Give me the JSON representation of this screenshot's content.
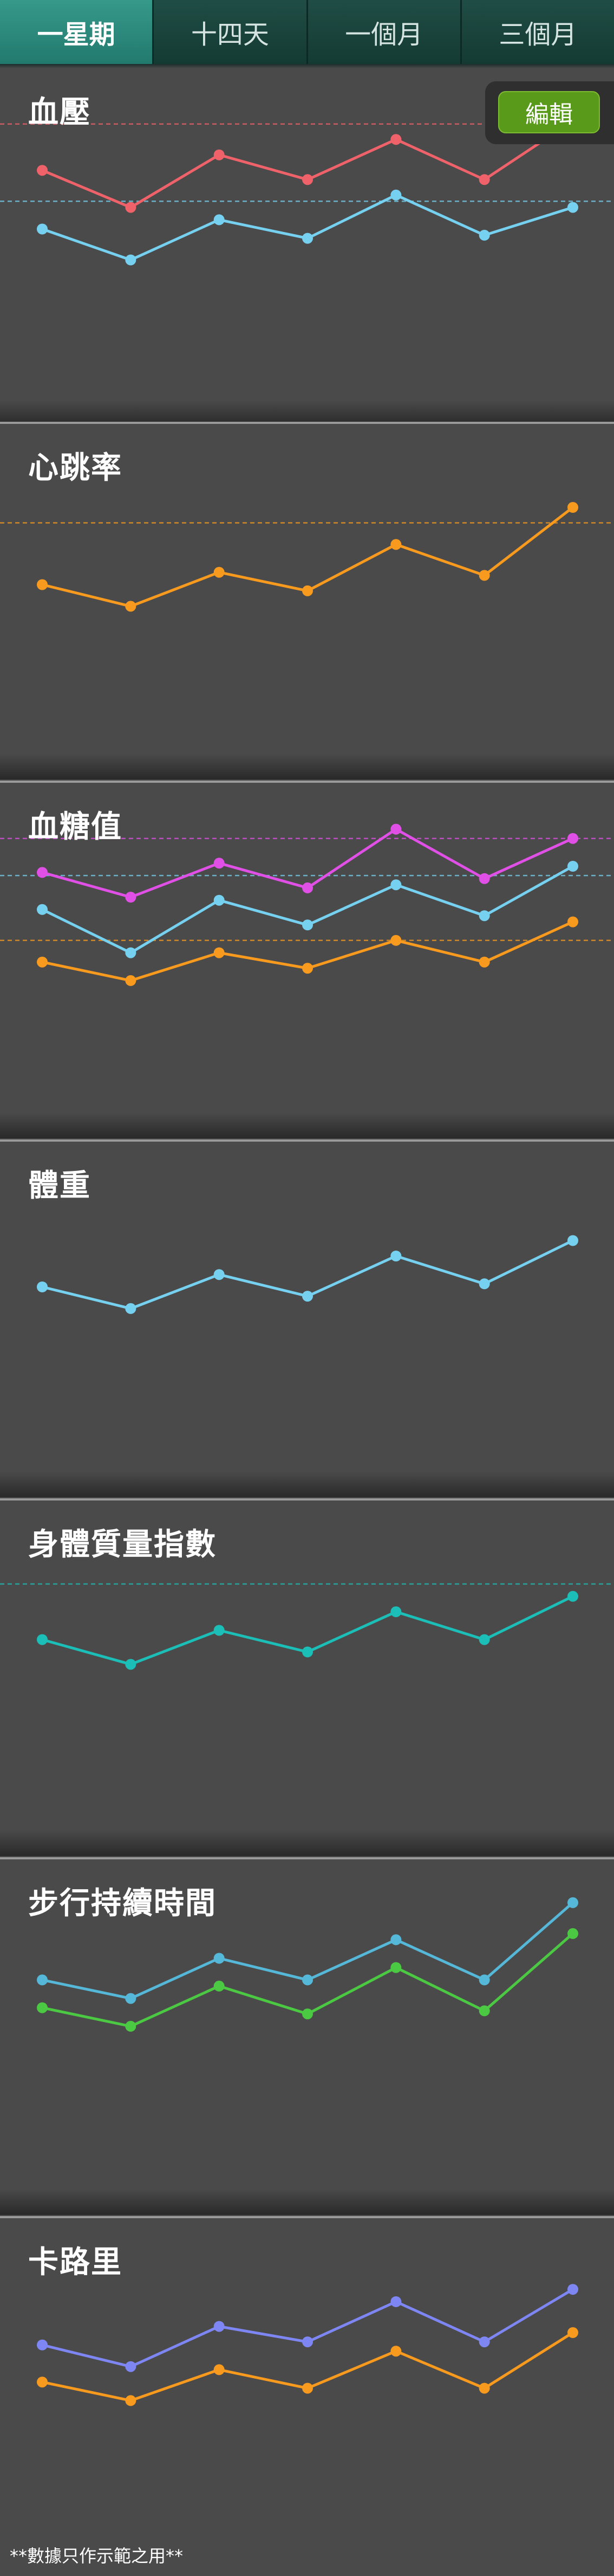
{
  "tabs": [
    {
      "label": "一星期",
      "active": true
    },
    {
      "label": "十四天",
      "active": false
    },
    {
      "label": "一個月",
      "active": false
    },
    {
      "label": "三個月",
      "active": false
    }
  ],
  "edit_button": {
    "label": "編輯"
  },
  "footnote": "**數據只作示範之用**",
  "colors": {
    "red": "#f0626a",
    "blue": "#76d1f0",
    "orange": "#f89a1e",
    "magenta": "#e150e6",
    "teal": "#1bbfb8",
    "steel": "#55b8d8",
    "green": "#4cc942",
    "indigo": "#7d86f2"
  },
  "panels": [
    {
      "title": "血壓",
      "chart_data": {
        "type": "line",
        "x": [
          1,
          2,
          3,
          4,
          5,
          6,
          7
        ],
        "ylim": [
          0,
          100
        ],
        "series": [
          {
            "color": "#f0626a",
            "values": [
              74,
              62,
              79,
              71,
              84,
              71,
              90
            ],
            "reference": 89
          },
          {
            "color": "#76d1f0",
            "values": [
              55,
              45,
              58,
              52,
              66,
              53,
              62
            ],
            "reference": 64
          }
        ]
      }
    },
    {
      "title": "心跳率",
      "chart_data": {
        "type": "line",
        "x": [
          1,
          2,
          3,
          4,
          5,
          6,
          7
        ],
        "ylim": [
          0,
          100
        ],
        "series": [
          {
            "color": "#f89a1e",
            "values": [
              55,
              48,
              59,
              53,
              68,
              58,
              80
            ],
            "reference": 75
          }
        ]
      }
    },
    {
      "title": "血糖值",
      "chart_data": {
        "type": "line",
        "x": [
          1,
          2,
          3,
          4,
          5,
          6,
          7
        ],
        "ylim": [
          0,
          100
        ],
        "series": [
          {
            "color": "#e150e6",
            "values": [
              78,
              70,
              81,
              73,
              92,
              76,
              89
            ],
            "reference": 89
          },
          {
            "color": "#76d1f0",
            "values": [
              66,
              52,
              69,
              61,
              74,
              64,
              80
            ],
            "reference": 77
          },
          {
            "color": "#f89a1e",
            "values": [
              49,
              43,
              52,
              47,
              56,
              49,
              62
            ],
            "reference": 56
          }
        ]
      }
    },
    {
      "title": "體重",
      "chart_data": {
        "type": "line",
        "x": [
          1,
          2,
          3,
          4,
          5,
          6,
          7
        ],
        "ylim": [
          0,
          100
        ],
        "series": [
          {
            "color": "#76d1f0",
            "values": [
              60,
              53,
              64,
              57,
              70,
              61,
              75
            ]
          }
        ]
      }
    },
    {
      "title": "身體質量指數",
      "chart_data": {
        "type": "line",
        "x": [
          1,
          2,
          3,
          4,
          5,
          6,
          7
        ],
        "ylim": [
          0,
          100
        ],
        "series": [
          {
            "color": "#1bbfb8",
            "values": [
              62,
              54,
              65,
              58,
              71,
              62,
              76
            ],
            "reference": 80
          }
        ]
      }
    },
    {
      "title": "步行持續時間",
      "chart_data": {
        "type": "line",
        "x": [
          1,
          2,
          3,
          4,
          5,
          6,
          7
        ],
        "ylim": [
          0,
          100
        ],
        "series": [
          {
            "color": "#55b8d8",
            "values": [
              68,
              62,
              75,
              68,
              81,
              68,
              93
            ]
          },
          {
            "color": "#4cc942",
            "values": [
              59,
              53,
              66,
              57,
              72,
              58,
              83
            ]
          }
        ]
      }
    },
    {
      "title": "卡路里",
      "chart_data": {
        "type": "line",
        "x": [
          1,
          2,
          3,
          4,
          5,
          6,
          7
        ],
        "ylim": [
          0,
          100
        ],
        "series": [
          {
            "color": "#7d86f2",
            "values": [
              66,
              59,
              72,
              67,
              80,
              67,
              84
            ]
          },
          {
            "color": "#f89a1e",
            "values": [
              54,
              48,
              58,
              52,
              64,
              52,
              70
            ]
          }
        ]
      }
    }
  ]
}
